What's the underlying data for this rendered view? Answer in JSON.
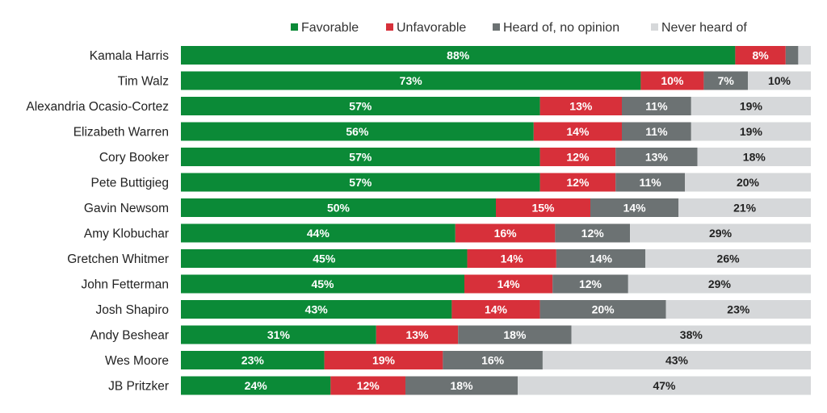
{
  "chart_data": {
    "type": "stacked-bar-horizontal",
    "title": "",
    "xlabel": "",
    "ylabel": "",
    "xlim": [
      0,
      100
    ],
    "legend_position": "top",
    "series": [
      {
        "name": "Favorable",
        "color": "#0b8a37",
        "label_color": "#ffffff",
        "values": [
          88,
          73,
          57,
          56,
          57,
          57,
          50,
          44,
          45,
          45,
          43,
          31,
          23,
          24
        ],
        "labels": [
          "88%",
          "73%",
          "57%",
          "56%",
          "57%",
          "57%",
          "50%",
          "44%",
          "45%",
          "45%",
          "43%",
          "31%",
          "23%",
          "24%"
        ]
      },
      {
        "name": "Unfavorable",
        "color": "#d7303a",
        "label_color": "#ffffff",
        "values": [
          8,
          10,
          13,
          14,
          12,
          12,
          15,
          16,
          14,
          14,
          14,
          13,
          19,
          12
        ],
        "labels": [
          "8%",
          "10%",
          "13%",
          "14%",
          "12%",
          "12%",
          "15%",
          "16%",
          "14%",
          "14%",
          "14%",
          "13%",
          "19%",
          "12%"
        ]
      },
      {
        "name": "Heard of, no opinion",
        "color": "#6c7273",
        "label_color": "#ffffff",
        "values": [
          2,
          7,
          11,
          11,
          13,
          11,
          14,
          12,
          14,
          12,
          20,
          18,
          16,
          18
        ],
        "labels": [
          "",
          "7%",
          "11%",
          "11%",
          "13%",
          "11%",
          "14%",
          "12%",
          "14%",
          "12%",
          "20%",
          "18%",
          "16%",
          "18%"
        ]
      },
      {
        "name": "Never heard of",
        "color": "#d6d8da",
        "label_color": "#222222",
        "values": [
          2,
          10,
          19,
          19,
          18,
          20,
          21,
          29,
          26,
          29,
          23,
          38,
          43,
          47
        ],
        "labels": [
          "",
          "10%",
          "19%",
          "19%",
          "18%",
          "20%",
          "21%",
          "29%",
          "26%",
          "29%",
          "23%",
          "38%",
          "43%",
          "47%"
        ]
      }
    ],
    "categories": [
      "Kamala Harris",
      "Tim Walz",
      "Alexandria Ocasio-Cortez",
      "Elizabeth Warren",
      "Cory Booker",
      "Pete Buttigieg",
      "Gavin Newsom",
      "Amy Klobuchar",
      "Gretchen Whitmer",
      "John Fetterman",
      "Josh Shapiro",
      "Andy Beshear",
      "Wes Moore",
      "JB Pritzker"
    ]
  }
}
